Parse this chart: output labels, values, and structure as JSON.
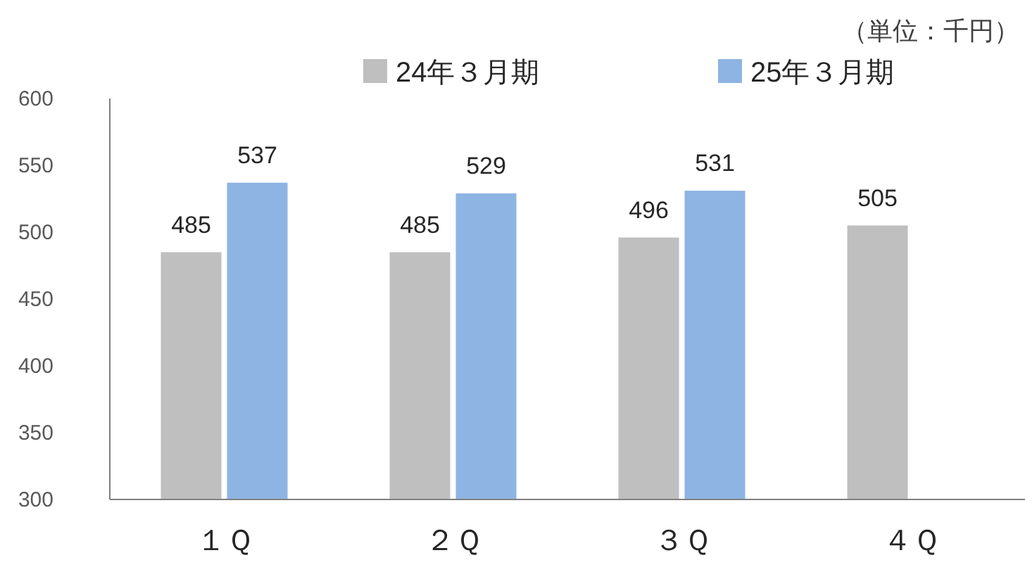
{
  "chart_data": {
    "type": "bar",
    "annotations": [
      "（単位：千円）"
    ],
    "categories": [
      "１Ｑ",
      "２Ｑ",
      "３Ｑ",
      "４Ｑ"
    ],
    "series": [
      {
        "name": "24年３月期",
        "color": "#bfbfbf",
        "values": [
          485,
          485,
          496,
          505
        ]
      },
      {
        "name": "25年３月期",
        "color": "#8eb4e3",
        "values": [
          537,
          529,
          531,
          null
        ]
      }
    ],
    "ylim": [
      300,
      600
    ],
    "yticks": [
      300,
      350,
      400,
      450,
      500,
      550,
      600
    ],
    "data_labels": true,
    "legend": "top"
  }
}
